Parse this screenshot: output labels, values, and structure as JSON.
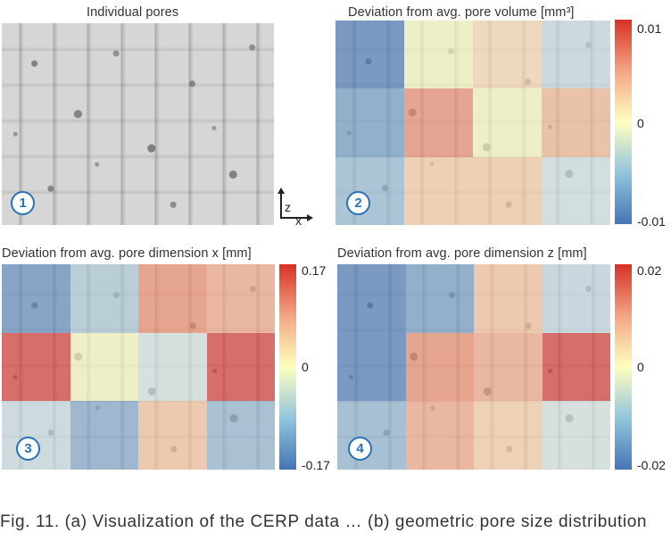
{
  "panels": [
    {
      "number": "1",
      "title": "Individual pores"
    },
    {
      "number": "2",
      "title": "Deviation from avg. pore volume [mm³]",
      "colorbar": {
        "max": "0.01",
        "mid": "0",
        "min": "-0.01"
      },
      "cells": [
        [
          "#4575b4",
          "#ffffbf",
          "#fddbb0",
          "#c6dbe2"
        ],
        [
          "#6b9ac4",
          "#f1866a",
          "#ffffbf",
          "#f7b690"
        ],
        [
          "#92bcd6",
          "#fdcf9f",
          "#fdcf9f",
          "#d1e3e6"
        ]
      ]
    },
    {
      "number": "3",
      "title": "Deviation from avg. pore dimension x [mm]",
      "colorbar": {
        "max": "0.17",
        "mid": "0",
        "min": "-0.17"
      },
      "cells": [
        [
          "#5a87bd",
          "#a9c9d9",
          "#f08764",
          "#f5a583"
        ],
        [
          "#d73027",
          "#ffffbf",
          "#d6e6e4",
          "#d73027"
        ],
        [
          "#c8dfe4",
          "#7ea6cd",
          "#fcc497",
          "#8fb5d3"
        ]
      ]
    },
    {
      "number": "4",
      "title": "Deviation from avg. pore dimension z [mm]",
      "colorbar": {
        "max": "0.02",
        "mid": "0",
        "min": "-0.02"
      },
      "cells": [
        [
          "#4575b4",
          "#6c97c4",
          "#fcc497",
          "#c2d8e3"
        ],
        [
          "#4575b4",
          "#f08764",
          "#f5a583",
          "#d73027"
        ],
        [
          "#8db3d2",
          "#f5a583",
          "#fcd0a4",
          "#d6e6e4"
        ]
      ]
    }
  ],
  "axis_indicator": {
    "vertical": "z",
    "horizontal": "x"
  },
  "caption": "Fig. 11. (a) Visualization of the CERP data … (b) geometric pore size distribution"
}
